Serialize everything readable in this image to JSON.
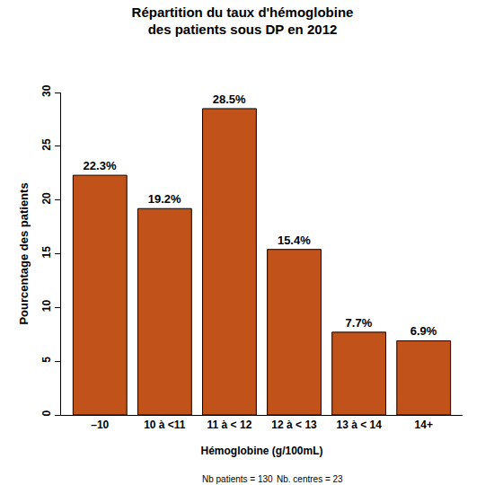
{
  "chart_data": {
    "type": "bar",
    "title": [
      "Répartition du taux d'hémoglobine",
      "des patients sous DP en 2012"
    ],
    "x_label": "Hémoglobine (g/100mL)",
    "y_label": "Pourcentage des patients",
    "categories": [
      "–10",
      "10 à <11",
      "11 à < 12",
      "12 à < 13",
      "13 à < 14",
      "14+"
    ],
    "values": [
      22.3,
      19.2,
      28.5,
      15.4,
      7.7,
      6.9
    ],
    "value_labels": [
      "22.3%",
      "19.2%",
      "28.5%",
      "15.4%",
      "7.7%",
      "6.9%"
    ],
    "data_labels": true,
    "color": "#c1521a",
    "ylim": [
      0,
      30
    ],
    "yticks": [
      0,
      5,
      10,
      15,
      20,
      25,
      30
    ],
    "grid": false,
    "annotations": [
      "Nb patients = 130",
      "Nb. centres = 23"
    ]
  }
}
